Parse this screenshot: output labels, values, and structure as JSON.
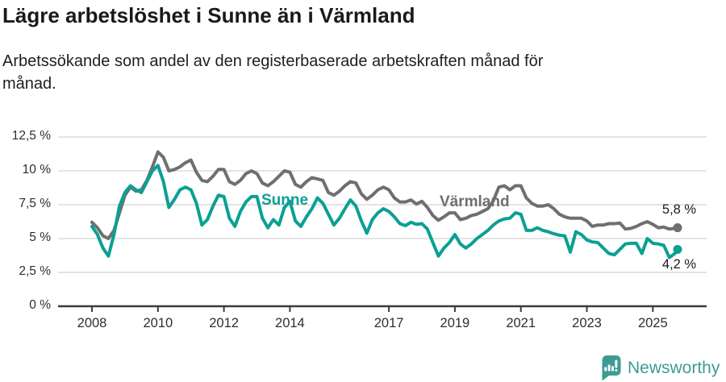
{
  "header": {
    "title": "Lägre arbetslöshet i Sunne än i Värmland",
    "subtitle": "Arbetssökande som andel av den registerbaserade arbetskraften månad för månad."
  },
  "chart_data": {
    "type": "line",
    "unit": "%",
    "x_start": "2008-01",
    "x_end": "2025-10",
    "x_step_months": 2,
    "ylim": [
      0,
      12.5
    ],
    "grid": true,
    "ytick_values": [
      0,
      2.5,
      5,
      7.5,
      10,
      12.5
    ],
    "ytick_labels": [
      "0 %",
      "2,5 %",
      "5 %",
      "7,5 %",
      "10 %",
      "12,5 %"
    ],
    "xtick_labels": [
      "2008",
      "2010",
      "2012",
      "2014",
      "2017",
      "2019",
      "2021",
      "2023",
      "2025"
    ],
    "series": [
      {
        "name": "Värmland",
        "color": "#6f6f6f",
        "end_label": "5,8 %",
        "end_value": 5.8,
        "values": [
          6.2,
          5.8,
          5.2,
          5.0,
          5.6,
          6.9,
          8.2,
          8.8,
          8.5,
          8.6,
          9.3,
          10.3,
          11.4,
          11.0,
          10.0,
          10.1,
          10.3,
          10.6,
          10.8,
          9.9,
          9.3,
          9.2,
          9.6,
          10.1,
          10.1,
          9.2,
          9.0,
          9.3,
          9.8,
          10.0,
          9.8,
          9.1,
          8.9,
          9.2,
          9.6,
          10.0,
          9.9,
          9.0,
          8.8,
          9.2,
          9.5,
          9.4,
          9.3,
          8.4,
          8.2,
          8.5,
          8.9,
          9.2,
          9.1,
          8.3,
          7.9,
          8.2,
          8.6,
          8.8,
          8.6,
          8.0,
          7.7,
          7.7,
          7.85,
          7.55,
          7.75,
          7.3,
          6.7,
          6.35,
          6.6,
          6.9,
          6.9,
          6.4,
          6.5,
          6.7,
          6.8,
          7.0,
          7.2,
          7.8,
          8.8,
          8.9,
          8.6,
          8.9,
          8.9,
          8.0,
          7.6,
          7.4,
          7.4,
          7.5,
          7.2,
          6.8,
          6.6,
          6.5,
          6.5,
          6.5,
          6.3,
          5.9,
          6.0,
          6.0,
          6.1,
          6.1,
          6.15,
          5.7,
          5.75,
          5.9,
          6.1,
          6.25,
          6.05,
          5.8,
          5.85,
          5.7,
          5.75,
          5.8
        ]
      },
      {
        "name": "Sunne",
        "color": "#0ba093",
        "end_label": "4,2 %",
        "end_value": 4.2,
        "values": [
          5.9,
          5.3,
          4.3,
          3.7,
          5.3,
          7.4,
          8.4,
          8.9,
          8.6,
          8.4,
          9.2,
          10.0,
          10.4,
          9.2,
          7.3,
          7.9,
          8.6,
          8.8,
          8.6,
          7.6,
          6.0,
          6.4,
          7.4,
          8.2,
          8.1,
          6.5,
          5.9,
          7.0,
          7.7,
          8.1,
          8.1,
          6.5,
          5.8,
          6.4,
          6.0,
          7.3,
          7.75,
          6.3,
          5.9,
          6.6,
          7.2,
          8.0,
          7.6,
          6.8,
          6.0,
          6.5,
          7.2,
          7.85,
          7.4,
          6.3,
          5.4,
          6.4,
          6.9,
          7.2,
          7.0,
          6.6,
          6.1,
          5.95,
          6.2,
          6.05,
          6.1,
          5.7,
          4.7,
          3.7,
          4.3,
          4.7,
          5.3,
          4.6,
          4.3,
          4.6,
          5.0,
          5.3,
          5.6,
          6.0,
          6.3,
          6.45,
          6.5,
          6.9,
          6.8,
          5.6,
          5.6,
          5.8,
          5.6,
          5.5,
          5.35,
          5.25,
          5.2,
          4.0,
          5.5,
          5.3,
          4.9,
          4.75,
          4.7,
          4.3,
          3.9,
          3.8,
          4.2,
          4.6,
          4.65,
          4.65,
          3.9,
          5.0,
          4.65,
          4.6,
          4.5,
          3.6,
          3.9,
          4.2
        ]
      }
    ],
    "legend_position": "inline",
    "axis_color": "#3b3b3b",
    "grid_color": "#dbdbdb"
  },
  "footer": {
    "brand": "Newsworthy",
    "brand_color": "#3e9b94",
    "logo_icon": "bar-chart-speech-bubble"
  }
}
